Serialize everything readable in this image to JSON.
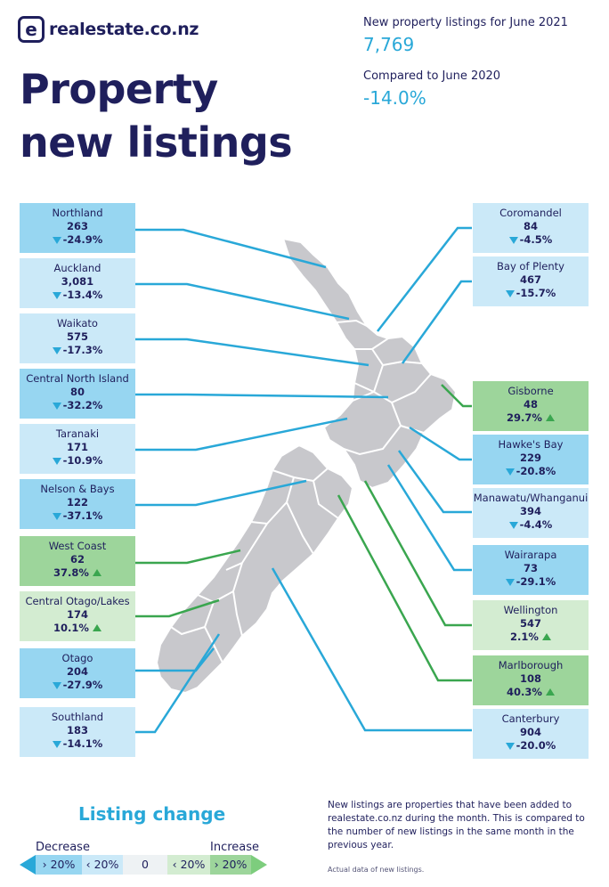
{
  "brand": {
    "logo_letter": "e",
    "logo_text": "realestate.co.nz"
  },
  "title": {
    "line1": "Property",
    "line2": "new listings"
  },
  "stats": {
    "listings_label": "New property listings for June 2021",
    "listings_value": "7,769",
    "compare_label": "Compared to June 2020",
    "compare_value": "-14.0%"
  },
  "regions": {
    "northland": {
      "name": "Northland",
      "count": "263",
      "change": "-24.9%",
      "direction": "down"
    },
    "auckland": {
      "name": "Auckland",
      "count": "3,081",
      "change": "-13.4%",
      "direction": "down"
    },
    "waikato": {
      "name": "Waikato",
      "count": "575",
      "change": "-17.3%",
      "direction": "down"
    },
    "central_north_island": {
      "name": "Central North Island",
      "count": "80",
      "change": "-32.2%",
      "direction": "down"
    },
    "taranaki": {
      "name": "Taranaki",
      "count": "171",
      "change": "-10.9%",
      "direction": "down"
    },
    "nelson_bays": {
      "name": "Nelson & Bays",
      "count": "122",
      "change": "-37.1%",
      "direction": "down"
    },
    "west_coast": {
      "name": "West Coast",
      "count": "62",
      "change": "37.8%",
      "direction": "up"
    },
    "central_otago_lakes": {
      "name": "Central Otago/Lakes",
      "count": "174",
      "change": "10.1%",
      "direction": "up"
    },
    "otago": {
      "name": "Otago",
      "count": "204",
      "change": "-27.9%",
      "direction": "down"
    },
    "southland": {
      "name": "Southland",
      "count": "183",
      "change": "-14.1%",
      "direction": "down"
    },
    "coromandel": {
      "name": "Coromandel",
      "count": "84",
      "change": "-4.5%",
      "direction": "down"
    },
    "bay_of_plenty": {
      "name": "Bay of Plenty",
      "count": "467",
      "change": "-15.7%",
      "direction": "down"
    },
    "gisborne": {
      "name": "Gisborne",
      "count": "48",
      "change": "29.7%",
      "direction": "up"
    },
    "hawkes_bay": {
      "name": "Hawke's Bay",
      "count": "229",
      "change": "-20.8%",
      "direction": "down"
    },
    "manawatu_whanganui": {
      "name": "Manawatu/Whanganui",
      "count": "394",
      "change": "-4.4%",
      "direction": "down"
    },
    "wairarapa": {
      "name": "Wairarapa",
      "count": "73",
      "change": "-29.1%",
      "direction": "down"
    },
    "wellington": {
      "name": "Wellington",
      "count": "547",
      "change": "2.1%",
      "direction": "up"
    },
    "marlborough": {
      "name": "Marlborough",
      "count": "108",
      "change": "40.3%",
      "direction": "up"
    },
    "canterbury": {
      "name": "Canterbury",
      "count": "904",
      "change": "-20.0%",
      "direction": "down"
    }
  },
  "legend": {
    "title": "Listing change",
    "decrease_label": "Decrease",
    "increase_label": "Increase",
    "cells": [
      "› 20%",
      "‹ 20%",
      "0",
      "‹ 20%",
      "› 20%"
    ]
  },
  "notes": {
    "text": "New listings are properties that have been added to realestate.co.nz during the month. This is compared to the number of new listings in the same month in the previous year.",
    "footnote": "Actual data of new listings."
  },
  "colors": {
    "navy": "#1f1f5c",
    "blue_accent": "#29a8d8",
    "green_accent": "#3aa64f",
    "decrease_strong": "#97d6f1",
    "decrease_mild": "#cbe9f8",
    "increase_strong": "#9dd59b",
    "increase_mild": "#d3ecd1",
    "map_fill": "#c8c8cc"
  }
}
